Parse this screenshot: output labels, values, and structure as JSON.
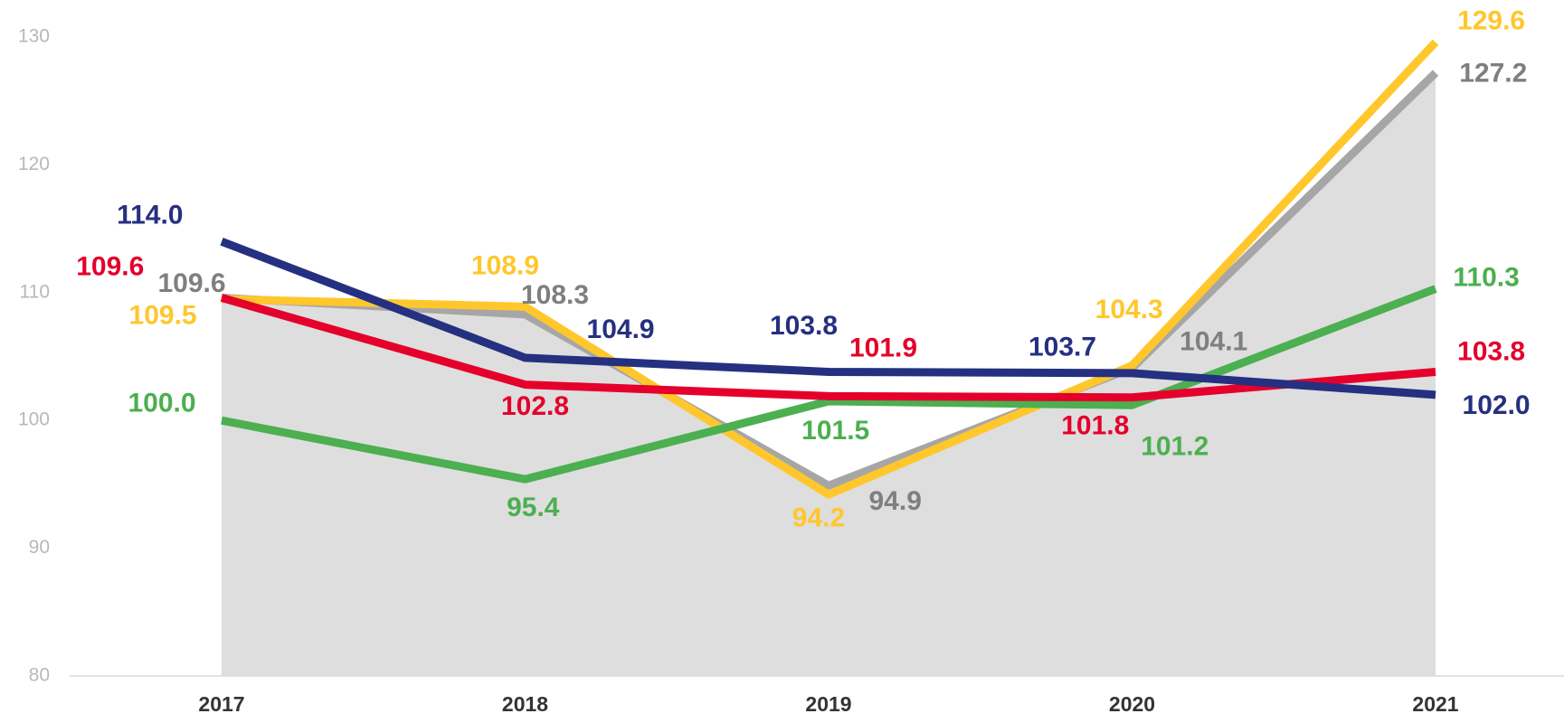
{
  "chart_data": {
    "type": "line",
    "categories": [
      "2017",
      "2018",
      "2019",
      "2020",
      "2021"
    ],
    "ylim": [
      80,
      130
    ],
    "yticks": [
      80,
      90,
      100,
      110,
      120,
      130
    ],
    "series": [
      {
        "color": "#a6a6a6",
        "label_color": "#7f7f7f",
        "area_color": "#dedede",
        "values": [
          109.6,
          108.3,
          94.9,
          104.1,
          127.2
        ],
        "value_labels": [
          "109.6",
          "108.3",
          "94.9",
          "104.1",
          "127.2"
        ]
      },
      {
        "color": "#ffc72c",
        "label_color": "#ffc72c",
        "values": [
          109.5,
          108.9,
          94.2,
          104.3,
          129.6
        ],
        "value_labels": [
          "109.5",
          "108.9",
          "94.2",
          "104.3",
          "129.6"
        ]
      },
      {
        "color": "#4caf50",
        "label_color": "#4caf50",
        "values": [
          100.0,
          95.4,
          101.5,
          101.2,
          110.3
        ],
        "value_labels": [
          "100.0",
          "95.4",
          "101.5",
          "101.2",
          "110.3"
        ]
      },
      {
        "color": "#e4002b",
        "label_color": "#e4002b",
        "values": [
          109.6,
          102.8,
          101.9,
          101.8,
          103.8
        ],
        "value_labels": [
          "109.6",
          "102.8",
          "101.9",
          "101.8",
          "103.8"
        ]
      },
      {
        "color": "#263080",
        "label_color": "#263080",
        "values": [
          114.0,
          104.9,
          103.8,
          103.7,
          102.0
        ],
        "value_labels": [
          "114.0",
          "104.9",
          "103.8",
          "103.7",
          "102.0"
        ]
      }
    ]
  }
}
